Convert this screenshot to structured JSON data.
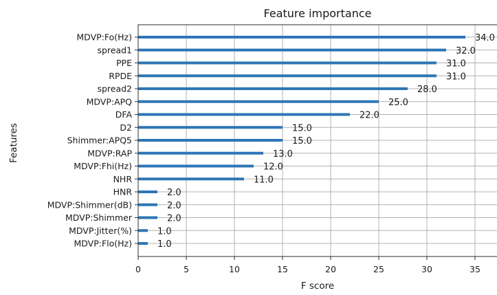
{
  "chart_data": {
    "type": "bar",
    "orientation": "horizontal",
    "title": "Feature importance",
    "xlabel": "F score",
    "ylabel": "Features",
    "xlim": [
      0,
      37
    ],
    "xticks": [
      0,
      5,
      10,
      15,
      20,
      25,
      30,
      35
    ],
    "grid": true,
    "legend": "none",
    "bar_color": "#2e76b6",
    "categories": [
      "MDVP:Fo(Hz)",
      "spread1",
      "PPE",
      "RPDE",
      "spread2",
      "MDVP:APQ",
      "DFA",
      "D2",
      "Shimmer:APQ5",
      "MDVP:RAP",
      "MDVP:Fhi(Hz)",
      "NHR",
      "HNR",
      "MDVP:Shimmer(dB)",
      "MDVP:Shimmer",
      "MDVP:Jitter(%)",
      "MDVP:Flo(Hz)"
    ],
    "values": [
      34,
      32,
      31,
      31,
      28,
      25,
      22,
      15,
      15,
      13,
      12,
      11,
      2,
      2,
      2,
      1,
      1
    ],
    "value_labels": [
      "34.0",
      "32.0",
      "31.0",
      "31.0",
      "28.0",
      "25.0",
      "22.0",
      "15.0",
      "15.0",
      "13.0",
      "12.0",
      "11.0",
      "2.0",
      "2.0",
      "2.0",
      "1.0",
      "1.0"
    ]
  }
}
